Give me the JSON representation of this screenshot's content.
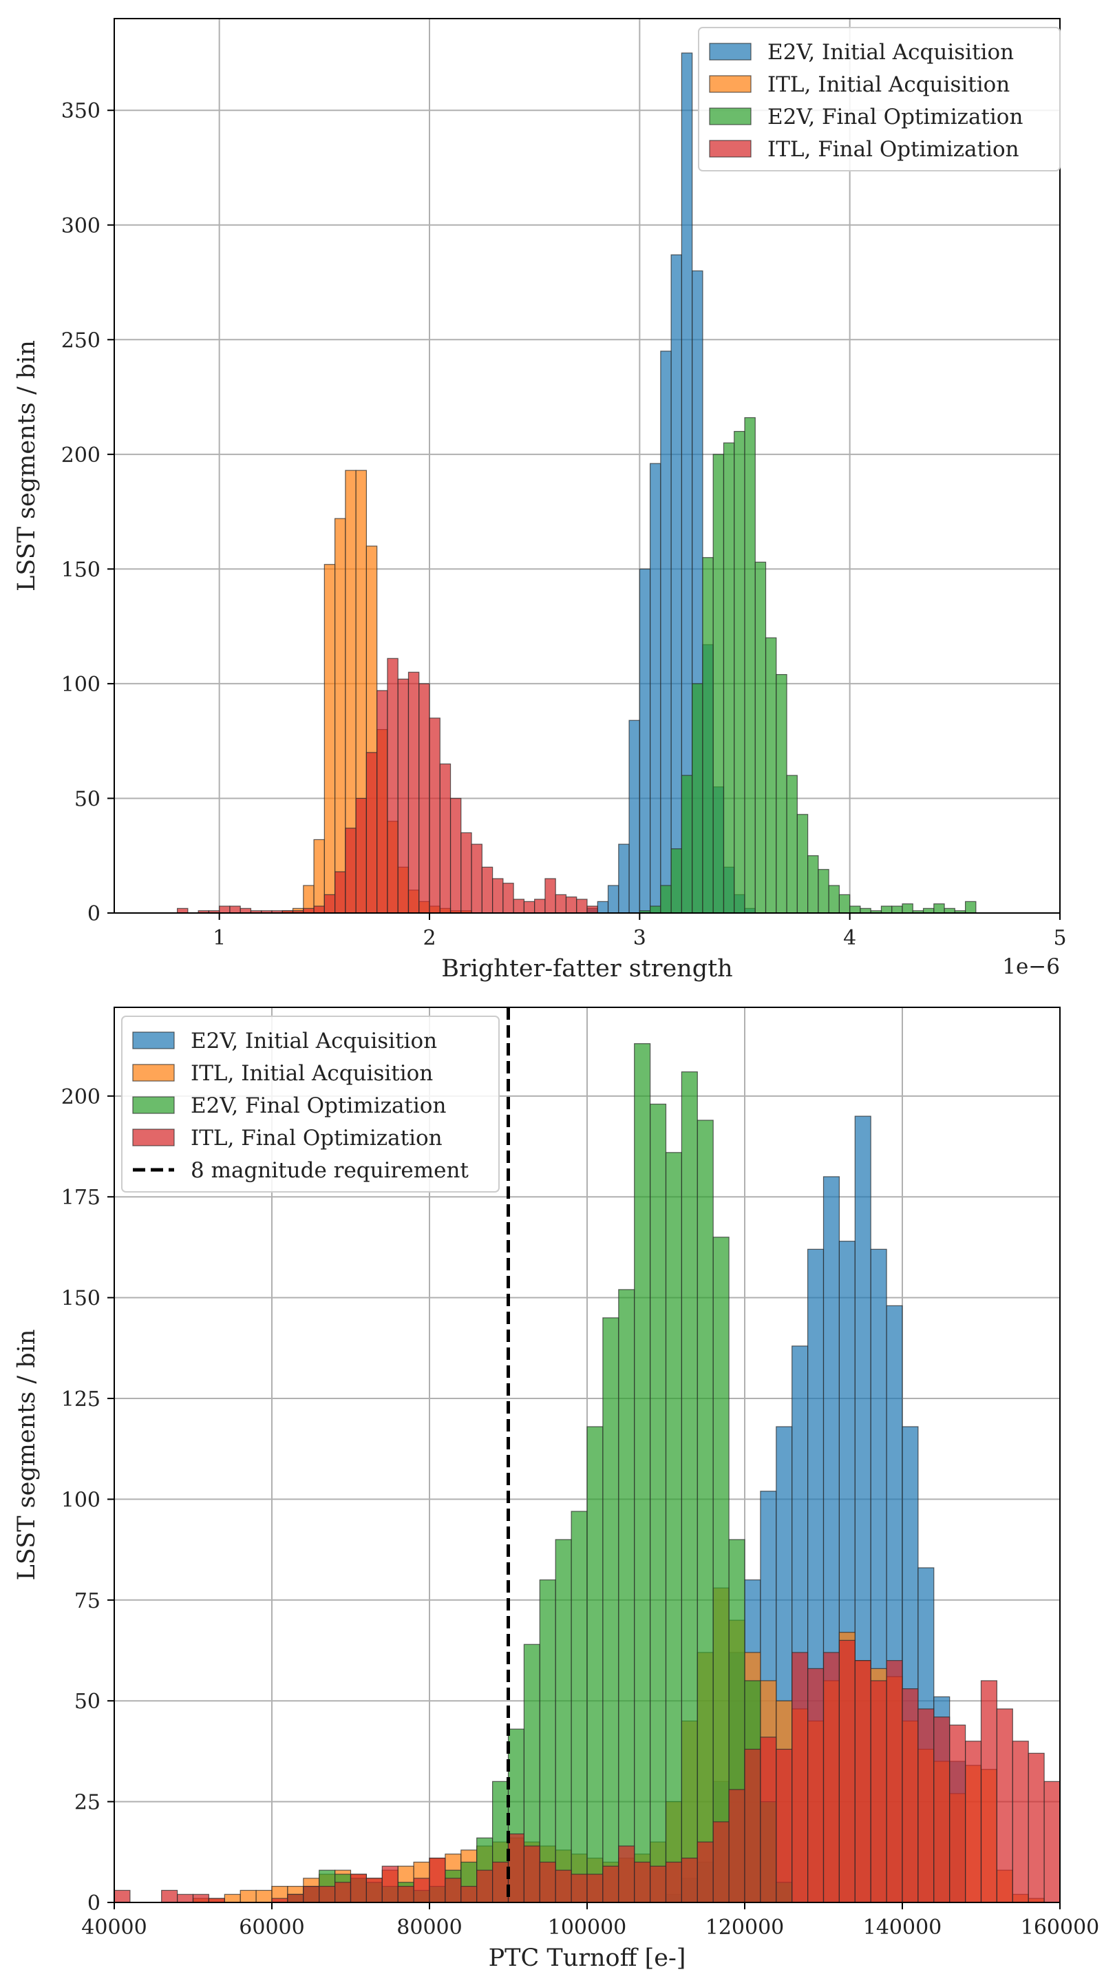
{
  "chart_data": [
    {
      "type": "histogram",
      "xlabel": "Brighter-fatter strength",
      "ylabel": "LSST segments / bin",
      "offset_label": "1e−6",
      "xlim": [
        0.5,
        5.0
      ],
      "ylim": [
        0,
        390
      ],
      "bin_width": 0.05,
      "grid": true,
      "legend_position": "top-right",
      "x_ticks": [
        {
          "value": 1,
          "label": "1"
        },
        {
          "value": 2,
          "label": "2"
        },
        {
          "value": 3,
          "label": "3"
        },
        {
          "value": 4,
          "label": "4"
        },
        {
          "value": 5,
          "label": "5"
        }
      ],
      "y_ticks": [
        {
          "value": 0,
          "label": "0"
        },
        {
          "value": 50,
          "label": "50"
        },
        {
          "value": 100,
          "label": "100"
        },
        {
          "value": 150,
          "label": "150"
        },
        {
          "value": 200,
          "label": "200"
        },
        {
          "value": 250,
          "label": "250"
        },
        {
          "value": 300,
          "label": "300"
        },
        {
          "value": 350,
          "label": "350"
        }
      ],
      "series": [
        {
          "name": "E2V, Initial Acquisition",
          "color": "#1f77b4",
          "start": 2.75,
          "counts": [
            2,
            5,
            12,
            30,
            84,
            150,
            196,
            245,
            287,
            375,
            280,
            117,
            55,
            20,
            8,
            2
          ]
        },
        {
          "name": "ITL, Initial Acquisition",
          "color": "#ff7f0e",
          "start": 1.3,
          "counts": [
            1,
            2,
            12,
            32,
            152,
            172,
            193,
            193,
            160,
            80,
            40,
            20,
            10,
            5,
            3,
            2,
            1,
            1
          ]
        },
        {
          "name": "E2V, Final Optimization",
          "color": "#2ca02c",
          "start": 3.0,
          "counts": [
            1,
            3,
            12,
            28,
            60,
            100,
            155,
            200,
            205,
            210,
            216,
            153,
            120,
            104,
            60,
            43,
            25,
            19,
            12,
            8,
            3,
            2,
            1,
            3,
            3,
            4,
            1,
            2,
            4,
            2,
            1,
            5
          ]
        },
        {
          "name": "ITL, Final Optimization",
          "color": "#d62728",
          "start": 0.8,
          "counts": [
            2,
            0,
            1,
            1,
            3,
            3,
            2,
            1,
            1,
            1,
            1,
            1,
            2,
            3,
            8,
            18,
            37,
            50,
            70,
            97,
            111,
            102,
            105,
            100,
            85,
            65,
            50,
            35,
            30,
            20,
            15,
            13,
            6,
            5,
            6,
            15,
            8,
            7,
            6,
            3
          ]
        }
      ]
    },
    {
      "type": "histogram",
      "xlabel": "PTC Turnoff [e-]",
      "ylabel": "LSST segments / bin",
      "xlim": [
        40000,
        160000
      ],
      "ylim": [
        0,
        222
      ],
      "bin_width": 2000,
      "grid": true,
      "legend_position": "top-left",
      "requirement_line": {
        "x": 90000,
        "label": "8 magnitude requirement"
      },
      "x_ticks": [
        {
          "value": 40000,
          "label": "40000"
        },
        {
          "value": 60000,
          "label": "60000"
        },
        {
          "value": 80000,
          "label": "80000"
        },
        {
          "value": 100000,
          "label": "100000"
        },
        {
          "value": 120000,
          "label": "120000"
        },
        {
          "value": 140000,
          "label": "140000"
        },
        {
          "value": 160000,
          "label": "160000"
        }
      ],
      "y_ticks": [
        {
          "value": 0,
          "label": "0"
        },
        {
          "value": 25,
          "label": "25"
        },
        {
          "value": 50,
          "label": "50"
        },
        {
          "value": 75,
          "label": "75"
        },
        {
          "value": 100,
          "label": "100"
        },
        {
          "value": 125,
          "label": "125"
        },
        {
          "value": 150,
          "label": "150"
        },
        {
          "value": 175,
          "label": "175"
        },
        {
          "value": 200,
          "label": "200"
        }
      ],
      "series": [
        {
          "name": "E2V, Initial Acquisition",
          "color": "#1f77b4",
          "start": 110000,
          "counts": [
            2,
            6,
            10,
            30,
            62,
            80,
            102,
            118,
            138,
            162,
            180,
            164,
            195,
            162,
            148,
            118,
            83,
            51,
            35
          ]
        },
        {
          "name": "ITL, Initial Acquisition",
          "color": "#ff7f0e",
          "start": 50000,
          "counts": [
            1,
            1,
            2,
            3,
            3,
            4,
            4,
            6,
            7,
            8,
            7,
            6,
            8,
            9,
            10,
            11,
            12,
            13,
            14,
            15,
            16,
            15,
            14,
            13,
            12,
            11,
            10,
            11,
            12,
            15,
            25,
            45,
            62,
            78,
            70,
            62,
            55,
            50,
            48,
            45,
            55,
            67,
            60,
            58,
            56,
            45,
            38,
            35,
            27,
            34,
            33,
            8,
            2,
            1
          ]
        },
        {
          "name": "E2V, Final Optimization",
          "color": "#2ca02c",
          "start": 62000,
          "counts": [
            2,
            4,
            8,
            7,
            6,
            5,
            4,
            5,
            3,
            4,
            8,
            10,
            16,
            30,
            43,
            64,
            80,
            90,
            97,
            118,
            145,
            152,
            213,
            198,
            186,
            206,
            194,
            165,
            90,
            55,
            25,
            5
          ]
        },
        {
          "name": "ITL, Final Optimization",
          "color": "#d62728",
          "start": 40000,
          "counts": [
            3,
            0,
            0,
            3,
            2,
            2,
            1,
            0,
            0,
            0,
            1,
            2,
            4,
            4,
            5,
            7,
            6,
            9,
            4,
            6,
            11,
            6,
            4,
            8,
            10,
            17,
            14,
            10,
            8,
            7,
            7,
            9,
            14,
            10,
            9,
            10,
            11,
            15,
            20,
            28,
            38,
            41,
            38,
            62,
            58,
            62,
            65,
            60,
            55,
            60,
            53,
            48,
            46,
            44,
            40,
            55,
            48,
            40,
            37,
            30,
            17,
            5,
            2,
            1
          ]
        }
      ]
    }
  ]
}
